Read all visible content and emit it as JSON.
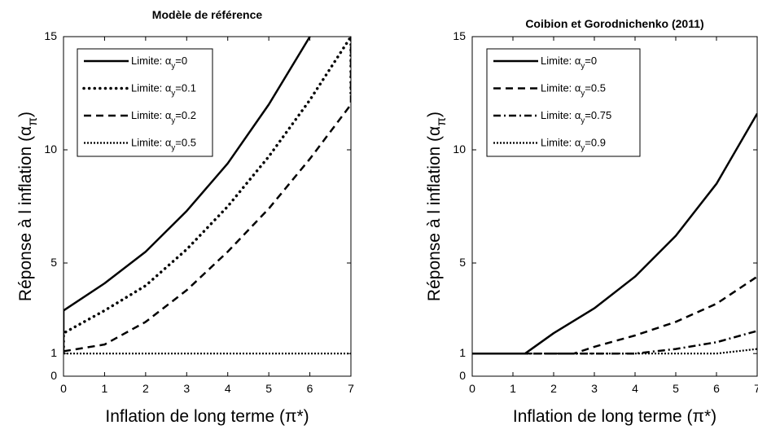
{
  "chart_data": [
    {
      "type": "line",
      "title": "Modèle de référence",
      "xlabel": "Inflation de long terme (π*)",
      "ylabel": "Réponse à l inflation (απ)",
      "xlim": [
        0,
        7
      ],
      "ylim": [
        0,
        15
      ],
      "xticks": [
        0,
        1,
        2,
        3,
        4,
        5,
        6,
        7
      ],
      "yticks": [
        0,
        1,
        5,
        10,
        15
      ],
      "legend": "upper left",
      "series": [
        {
          "name": "Limite: αy=0",
          "color": "#000000",
          "style": "solid",
          "x": [
            0,
            0,
            1,
            2,
            3,
            4,
            5,
            6
          ],
          "values": [
            1,
            2.9,
            4.1,
            5.5,
            7.3,
            9.4,
            12.0,
            15
          ]
        },
        {
          "name": "Limite: αy=0.1",
          "color": "#000000",
          "style": "dots",
          "x": [
            0,
            0,
            1,
            2,
            3,
            4,
            5,
            6,
            7,
            7
          ],
          "values": [
            1.3,
            1.9,
            2.9,
            4.0,
            5.6,
            7.5,
            9.7,
            12.2,
            15,
            12.3
          ]
        },
        {
          "name": "Limite: αy=0.2",
          "color": "#000000",
          "style": "dashed",
          "x": [
            0,
            1,
            2,
            3,
            4,
            5,
            6,
            7,
            7
          ],
          "values": [
            1.1,
            1.4,
            2.4,
            3.8,
            5.5,
            7.4,
            9.6,
            12,
            15
          ]
        },
        {
          "name": "Limite: αy=0.5",
          "color": "#000000",
          "style": "dotted",
          "x": [
            0,
            7
          ],
          "values": [
            1,
            1
          ]
        }
      ]
    },
    {
      "type": "line",
      "title": "Coibion et Gorodnichenko (2011)",
      "xlabel": "Inflation de long terme (π*)",
      "ylabel": "Réponse à l inflation (απ)",
      "xlim": [
        0,
        7
      ],
      "ylim": [
        0,
        15
      ],
      "xticks": [
        0,
        1,
        2,
        3,
        4,
        5,
        6,
        7
      ],
      "yticks": [
        0,
        1,
        5,
        10,
        15
      ],
      "legend": "upper left",
      "series": [
        {
          "name": "Limite: αy=0",
          "color": "#000000",
          "style": "solid",
          "x": [
            0,
            1.3,
            2,
            3,
            4,
            5,
            6,
            7
          ],
          "values": [
            1,
            1,
            1.9,
            3.0,
            4.4,
            6.2,
            8.5,
            11.6
          ]
        },
        {
          "name": "Limite: αy=0.5",
          "color": "#000000",
          "style": "dashed",
          "x": [
            0,
            2.5,
            3,
            4,
            5,
            6,
            7
          ],
          "values": [
            1,
            1,
            1.3,
            1.8,
            2.4,
            3.2,
            4.4
          ]
        },
        {
          "name": "Limite: αy=0.75",
          "color": "#000000",
          "style": "dashdot",
          "x": [
            0,
            4,
            5,
            6,
            7
          ],
          "values": [
            1,
            1,
            1.2,
            1.5,
            2.0
          ]
        },
        {
          "name": "Limite: αy=0.9",
          "color": "#000000",
          "style": "dotted",
          "x": [
            0,
            6,
            7
          ],
          "values": [
            1,
            1,
            1.2
          ]
        }
      ]
    }
  ]
}
